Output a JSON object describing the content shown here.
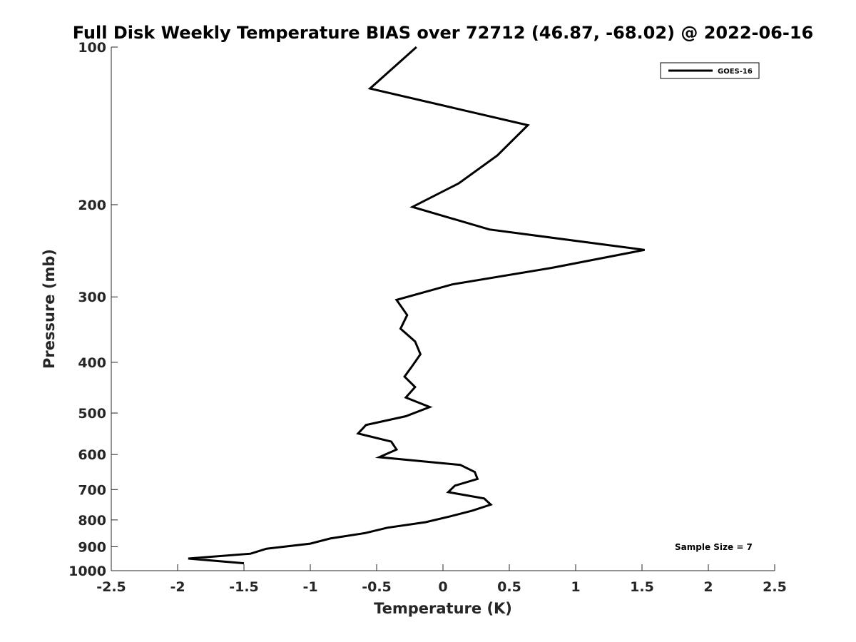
{
  "chart_data": {
    "type": "line",
    "title": "Full Disk Weekly Temperature BIAS over 72712 (46.87, -68.02) @ 2022-06-16",
    "xlabel": "Temperature (K)",
    "ylabel": "Pressure (mb)",
    "xlim": [
      -2.5,
      2.5
    ],
    "ylim": [
      100,
      1000
    ],
    "y_scale": "log",
    "y_reversed": true,
    "grid": false,
    "x_ticks": [
      -2.5,
      -2,
      -1.5,
      -1,
      -0.5,
      0,
      0.5,
      1,
      1.5,
      2,
      2.5
    ],
    "x_tick_labels": [
      "-2.5",
      "-2",
      "-1.5",
      "-1",
      "-0.5",
      "0",
      "0.5",
      "1",
      "1.5",
      "2",
      "2.5"
    ],
    "y_ticks": [
      100,
      200,
      300,
      400,
      500,
      600,
      700,
      800,
      900,
      1000
    ],
    "y_tick_labels": [
      "100",
      "200",
      "300",
      "400",
      "500",
      "600",
      "700",
      "800",
      "900",
      "1000"
    ],
    "legend_placement": "top-right",
    "series": [
      {
        "name": "GOES-16",
        "color": "#000000",
        "points": [
          {
            "x": -0.2,
            "y": 100
          },
          {
            "x": -0.55,
            "y": 120
          },
          {
            "x": 0.64,
            "y": 141
          },
          {
            "x": 0.41,
            "y": 161
          },
          {
            "x": 0.12,
            "y": 182
          },
          {
            "x": -0.23,
            "y": 202
          },
          {
            "x": 0.35,
            "y": 223
          },
          {
            "x": 1.52,
            "y": 244
          },
          {
            "x": 0.82,
            "y": 264
          },
          {
            "x": 0.07,
            "y": 284
          },
          {
            "x": -0.35,
            "y": 304
          },
          {
            "x": -0.27,
            "y": 325
          },
          {
            "x": -0.32,
            "y": 345
          },
          {
            "x": -0.21,
            "y": 365
          },
          {
            "x": -0.17,
            "y": 386
          },
          {
            "x": -0.23,
            "y": 406
          },
          {
            "x": -0.29,
            "y": 426
          },
          {
            "x": -0.21,
            "y": 446
          },
          {
            "x": -0.28,
            "y": 467
          },
          {
            "x": -0.1,
            "y": 487
          },
          {
            "x": -0.28,
            "y": 507
          },
          {
            "x": -0.58,
            "y": 527
          },
          {
            "x": -0.64,
            "y": 547
          },
          {
            "x": -0.39,
            "y": 567
          },
          {
            "x": -0.35,
            "y": 587
          },
          {
            "x": -0.48,
            "y": 607
          },
          {
            "x": 0.13,
            "y": 628
          },
          {
            "x": 0.24,
            "y": 648
          },
          {
            "x": 0.26,
            "y": 668
          },
          {
            "x": 0.09,
            "y": 688
          },
          {
            "x": 0.04,
            "y": 708
          },
          {
            "x": 0.31,
            "y": 728
          },
          {
            "x": 0.36,
            "y": 748
          },
          {
            "x": 0.22,
            "y": 768
          },
          {
            "x": 0.05,
            "y": 788
          },
          {
            "x": -0.13,
            "y": 808
          },
          {
            "x": -0.42,
            "y": 828
          },
          {
            "x": -0.59,
            "y": 848
          },
          {
            "x": -0.85,
            "y": 868
          },
          {
            "x": -1.0,
            "y": 888
          },
          {
            "x": -1.33,
            "y": 908
          },
          {
            "x": -1.45,
            "y": 928
          },
          {
            "x": -1.92,
            "y": 948
          },
          {
            "x": -1.5,
            "y": 968
          }
        ]
      }
    ],
    "annotations": [
      {
        "text": "Sample Size = 7",
        "placement": "bottom-right"
      }
    ]
  }
}
